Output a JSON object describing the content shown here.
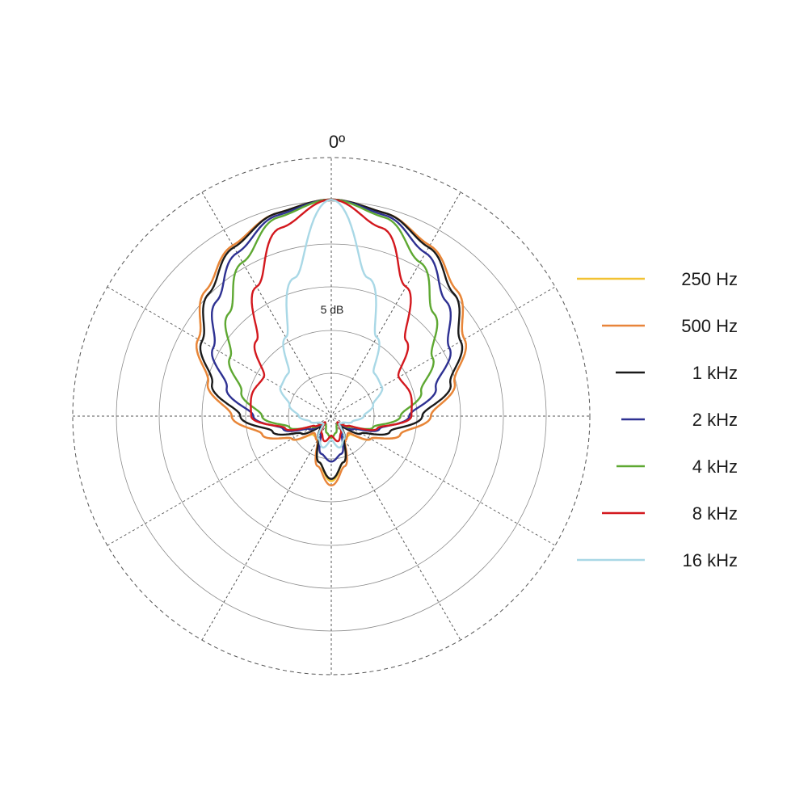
{
  "chart_data": {
    "type": "polar-line",
    "angle_label": "0º",
    "ring_label": "5 dB",
    "grid": true,
    "legend_position": "right",
    "series": [
      {
        "name": "250 Hz",
        "color": "#f2c233",
        "angles": [
          0,
          15,
          30,
          45,
          60,
          75,
          90,
          105,
          120,
          135,
          150,
          165,
          180
        ],
        "values": [
          1.0,
          0.97,
          0.91,
          0.82,
          0.71,
          0.59,
          0.46,
          0.33,
          0.21,
          0.12,
          0.12,
          0.22,
          0.3
        ]
      },
      {
        "name": "500 Hz",
        "color": "#e8843a",
        "angles": [
          0,
          15,
          30,
          45,
          60,
          75,
          90,
          105,
          120,
          135,
          150,
          165,
          180
        ],
        "values": [
          1.0,
          0.97,
          0.91,
          0.82,
          0.71,
          0.59,
          0.46,
          0.33,
          0.21,
          0.11,
          0.13,
          0.24,
          0.32
        ]
      },
      {
        "name": "1 kHz",
        "color": "#1a1a1a",
        "angles": [
          0,
          15,
          30,
          45,
          60,
          75,
          90,
          105,
          120,
          135,
          150,
          165,
          180
        ],
        "values": [
          1.0,
          0.97,
          0.9,
          0.8,
          0.69,
          0.57,
          0.42,
          0.28,
          0.16,
          0.07,
          0.12,
          0.22,
          0.29
        ]
      },
      {
        "name": "2 kHz",
        "color": "#2e3192",
        "angles": [
          0,
          15,
          30,
          45,
          60,
          75,
          90,
          105,
          120,
          135,
          150,
          165,
          180
        ],
        "values": [
          1.0,
          0.96,
          0.87,
          0.75,
          0.63,
          0.5,
          0.36,
          0.23,
          0.12,
          0.05,
          0.1,
          0.18,
          0.21
        ]
      },
      {
        "name": "4 kHz",
        "color": "#5ea832",
        "angles": [
          0,
          15,
          30,
          45,
          60,
          75,
          90,
          105,
          120,
          135,
          150,
          165,
          180
        ],
        "values": [
          1.0,
          0.95,
          0.82,
          0.67,
          0.54,
          0.43,
          0.32,
          0.2,
          0.1,
          0.04,
          0.05,
          0.08,
          0.1
        ]
      },
      {
        "name": "8 kHz",
        "color": "#d3181e",
        "angles": [
          0,
          15,
          30,
          45,
          60,
          75,
          90,
          105,
          120,
          135,
          150,
          165,
          180
        ],
        "values": [
          1.0,
          0.9,
          0.69,
          0.49,
          0.36,
          0.38,
          0.37,
          0.22,
          0.09,
          0.04,
          0.09,
          0.12,
          0.09
        ]
      },
      {
        "name": "16 kHz",
        "color": "#a9d8e6",
        "angles": [
          0,
          15,
          30,
          45,
          60,
          75,
          90,
          105,
          120,
          135,
          150,
          165,
          180
        ],
        "values": [
          1.0,
          0.66,
          0.42,
          0.28,
          0.27,
          0.2,
          0.15,
          0.1,
          0.06,
          0.05,
          0.12,
          0.15,
          0.11
        ]
      }
    ]
  }
}
